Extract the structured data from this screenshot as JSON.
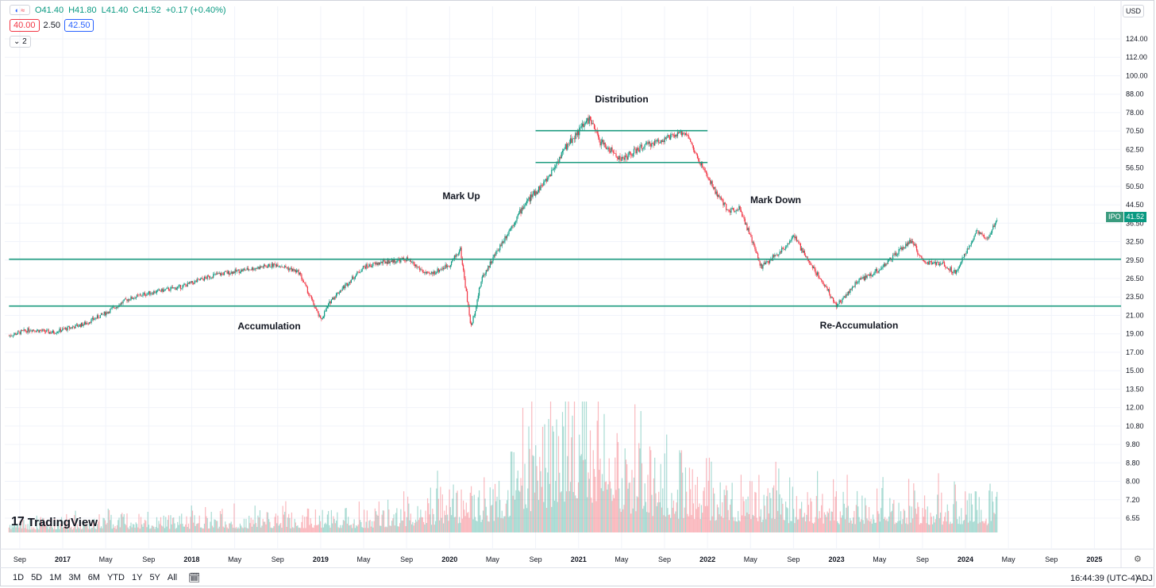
{
  "legend": {
    "open": "O41.40",
    "high": "H41.80",
    "low": "L41.40",
    "close": "C41.52",
    "change": "+0.17 (+0.40%)",
    "symbol_icon": "moon-wave-icon"
  },
  "moving_avg": {
    "low": "40.00",
    "mid": "2.50",
    "high": "42.50"
  },
  "collapse_label": "2",
  "currency": "USD",
  "price_tag": {
    "symbol": "IPO",
    "value": "41.52"
  },
  "logo_text": "TradingView",
  "range_buttons": [
    "1D",
    "5D",
    "1M",
    "3M",
    "6M",
    "YTD",
    "1Y",
    "5Y",
    "All"
  ],
  "clock": "16:44:39 (UTC-4)",
  "adj": "ADJ",
  "colors": {
    "up": "#089981",
    "down": "#f23645",
    "line": "#1e9c80",
    "grid": "#f0f3fa"
  },
  "chart_data": {
    "type": "candlestick",
    "price_scale": "log",
    "y_ticks": [
      "124.00",
      "112.00",
      "100.00",
      "88.00",
      "78.00",
      "70.50",
      "62.50",
      "56.50",
      "50.50",
      "44.50",
      "36.50",
      "32.50",
      "29.50",
      "26.50",
      "23.50",
      "21.00",
      "19.00",
      "17.00",
      "15.00",
      "13.50",
      "12.00",
      "10.80",
      "9.80",
      "8.80",
      "8.00",
      "7.20",
      "6.55"
    ],
    "x_ticks": [
      "Sep",
      "2017",
      "May",
      "Sep",
      "2018",
      "May",
      "Sep",
      "2019",
      "May",
      "Sep",
      "2020",
      "May",
      "Sep",
      "2021",
      "May",
      "Sep",
      "2022",
      "May",
      "Sep",
      "2023",
      "May",
      "Sep",
      "2024",
      "May",
      "Sep",
      "2025"
    ],
    "annotations": [
      {
        "text": "Distribution",
        "date": "2021-03"
      },
      {
        "text": "Mark Up",
        "date": "2020-03"
      },
      {
        "text": "Mark Down",
        "date": "2022-05"
      },
      {
        "text": "Accumulation",
        "date": "2018-09"
      },
      {
        "text": "Re-Accumulation",
        "date": "2023-05"
      }
    ],
    "horizontal_lines": [
      {
        "price": 32.0,
        "from": "2016-08",
        "to": "2025-06"
      },
      {
        "price": 24.0,
        "from": "2016-08",
        "to": "2025-06"
      },
      {
        "price": 70.5,
        "from": "2020-09",
        "to": "2022-01"
      },
      {
        "price": 58.0,
        "from": "2020-09",
        "to": "2022-01"
      }
    ],
    "price_path": [
      [
        "2016-08",
        20.0
      ],
      [
        "2016-10",
        20.8
      ],
      [
        "2016-12",
        20.4
      ],
      [
        "2017-03",
        21.5
      ],
      [
        "2017-05",
        23.0
      ],
      [
        "2017-07",
        25.0
      ],
      [
        "2017-09",
        26.0
      ],
      [
        "2017-12",
        27.0
      ],
      [
        "2018-03",
        29.0
      ],
      [
        "2018-06",
        30.0
      ],
      [
        "2018-09",
        31.0
      ],
      [
        "2018-11",
        29.5
      ],
      [
        "2018-12",
        25.5
      ],
      [
        "2019-01",
        22.0
      ],
      [
        "2019-02",
        25.0
      ],
      [
        "2019-05",
        30.5
      ],
      [
        "2019-07",
        31.5
      ],
      [
        "2019-09",
        32.0
      ],
      [
        "2019-11",
        29.0
      ],
      [
        "2020-01",
        31.0
      ],
      [
        "2020-02",
        34.0
      ],
      [
        "2020-03",
        21.0
      ],
      [
        "2020-04",
        28.5
      ],
      [
        "2020-06",
        36.0
      ],
      [
        "2020-08",
        45.0
      ],
      [
        "2020-10",
        52.0
      ],
      [
        "2020-12",
        65.0
      ],
      [
        "2021-02",
        76.0
      ],
      [
        "2021-03",
        66.0
      ],
      [
        "2021-05",
        59.0
      ],
      [
        "2021-07",
        64.0
      ],
      [
        "2021-09",
        67.0
      ],
      [
        "2021-11",
        70.0
      ],
      [
        "2021-12",
        60.0
      ],
      [
        "2022-02",
        47.0
      ],
      [
        "2022-03",
        43.0
      ],
      [
        "2022-04",
        44.0
      ],
      [
        "2022-06",
        30.5
      ],
      [
        "2022-08",
        34.0
      ],
      [
        "2022-09",
        37.0
      ],
      [
        "2022-10",
        33.0
      ],
      [
        "2022-12",
        27.0
      ],
      [
        "2023-01",
        24.0
      ],
      [
        "2023-03",
        28.0
      ],
      [
        "2023-05",
        30.0
      ],
      [
        "2023-07",
        34.0
      ],
      [
        "2023-08",
        36.0
      ],
      [
        "2023-09",
        31.5
      ],
      [
        "2023-11",
        31.0
      ],
      [
        "2023-12",
        29.5
      ],
      [
        "2024-01",
        33.0
      ],
      [
        "2024-02",
        38.0
      ],
      [
        "2024-03",
        36.0
      ],
      [
        "2024-04",
        41.5
      ]
    ],
    "volume_profile": [
      [
        "2016-08",
        0.3
      ],
      [
        "2019-06",
        0.5
      ],
      [
        "2020-05",
        1.2
      ],
      [
        "2020-10",
        2.5
      ],
      [
        "2021-01",
        3.8
      ],
      [
        "2021-05",
        2.2
      ],
      [
        "2021-11",
        1.4
      ],
      [
        "2022-06",
        1.1
      ],
      [
        "2023-01",
        0.9
      ],
      [
        "2024-04",
        0.8
      ]
    ]
  }
}
